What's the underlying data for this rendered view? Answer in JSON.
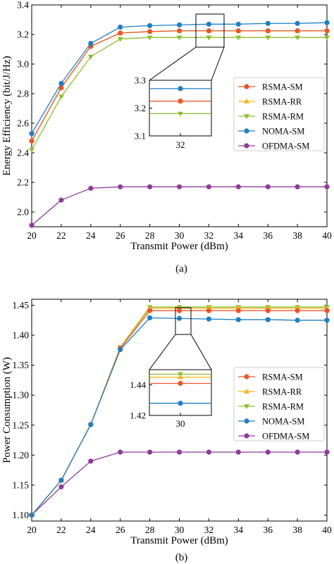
{
  "colors": {
    "RSMA-SM": "#e8572e",
    "RSMA-RR": "#f2b41a",
    "RSMA-RM": "#8cbf2b",
    "NOMA-SM": "#1f7fc2",
    "OFDMA-SM": "#8e3c98"
  },
  "markers": {
    "RSMA-SM": "circle",
    "RSMA-RR": "triangle-up",
    "RSMA-RM": "triangle-down",
    "NOMA-SM": "circle",
    "OFDMA-SM": "circle"
  },
  "chart_data": [
    {
      "type": "line",
      "subplot_label": "(a)",
      "xlabel": "Transmit Power (dBm)",
      "ylabel": "Energy Efficiency (bit/J/Hz)",
      "x": [
        20,
        22,
        24,
        26,
        28,
        30,
        32,
        34,
        36,
        38,
        40
      ],
      "xlim": [
        20,
        40
      ],
      "ylim": [
        1.9,
        3.4
      ],
      "xticks": [
        "20",
        "22",
        "24",
        "26",
        "28",
        "30",
        "32",
        "34",
        "36",
        "38",
        "40"
      ],
      "yticks": [
        "2.0",
        "2.2",
        "2.4",
        "2.6",
        "2.8",
        "3.0",
        "3.2",
        "3.4"
      ],
      "legend_position": "middle-right",
      "series": [
        {
          "name": "RSMA-SM",
          "values": [
            2.48,
            2.84,
            3.12,
            3.21,
            3.22,
            3.225,
            3.225,
            3.225,
            3.225,
            3.225,
            3.225
          ]
        },
        {
          "name": "RSMA-RR",
          "values": [
            2.48,
            2.84,
            3.12,
            3.21,
            3.22,
            3.225,
            3.225,
            3.225,
            3.225,
            3.225,
            3.225
          ]
        },
        {
          "name": "RSMA-RM",
          "values": [
            2.42,
            2.78,
            3.05,
            3.17,
            3.18,
            3.18,
            3.18,
            3.18,
            3.18,
            3.18,
            3.18
          ]
        },
        {
          "name": "NOMA-SM",
          "values": [
            2.53,
            2.87,
            3.14,
            3.25,
            3.26,
            3.265,
            3.27,
            3.27,
            3.275,
            3.275,
            3.28
          ]
        },
        {
          "name": "OFDMA-SM",
          "values": [
            1.91,
            2.08,
            2.16,
            2.17,
            2.17,
            2.17,
            2.17,
            2.17,
            2.17,
            2.17,
            2.17
          ]
        }
      ],
      "inset": {
        "x": [
          32
        ],
        "xticks": [
          "32"
        ],
        "ylim": [
          3.1,
          3.3
        ],
        "yticks": [
          "3.1",
          "3.2",
          "3.3"
        ],
        "zoom_x": 32
      }
    },
    {
      "type": "line",
      "subplot_label": "(b)",
      "xlabel": "Transmit Power (dBm)",
      "ylabel": "Power Consumption (W)",
      "x": [
        20,
        22,
        24,
        26,
        28,
        30,
        32,
        34,
        36,
        38,
        40
      ],
      "xlim": [
        20,
        40
      ],
      "ylim": [
        1.09,
        1.46
      ],
      "xticks": [
        "20",
        "22",
        "24",
        "26",
        "28",
        "30",
        "32",
        "34",
        "36",
        "38",
        "40"
      ],
      "yticks": [
        "1.10",
        "1.15",
        "1.20",
        "1.25",
        "1.30",
        "1.35",
        "1.40",
        "1.45"
      ],
      "legend_position": "middle-right",
      "series": [
        {
          "name": "RSMA-SM",
          "values": [
            1.1,
            1.158,
            1.251,
            1.378,
            1.441,
            1.441,
            1.441,
            1.441,
            1.441,
            1.441,
            1.441
          ]
        },
        {
          "name": "RSMA-RR",
          "values": [
            1.1,
            1.158,
            1.251,
            1.379,
            1.445,
            1.445,
            1.445,
            1.445,
            1.445,
            1.445,
            1.445
          ]
        },
        {
          "name": "RSMA-RM",
          "values": [
            1.1,
            1.158,
            1.251,
            1.38,
            1.447,
            1.447,
            1.447,
            1.447,
            1.447,
            1.447,
            1.447
          ]
        },
        {
          "name": "NOMA-SM",
          "values": [
            1.1,
            1.158,
            1.251,
            1.376,
            1.429,
            1.428,
            1.427,
            1.426,
            1.426,
            1.425,
            1.425
          ]
        },
        {
          "name": "OFDMA-SM",
          "values": [
            1.1,
            1.147,
            1.19,
            1.205,
            1.205,
            1.205,
            1.205,
            1.205,
            1.205,
            1.205,
            1.205
          ]
        }
      ],
      "inset": {
        "x": [
          30
        ],
        "xticks": [
          "30"
        ],
        "ylim": [
          1.42,
          1.45
        ],
        "yticks": [
          "1.42",
          "1.44"
        ],
        "zoom_x": 30
      }
    }
  ]
}
